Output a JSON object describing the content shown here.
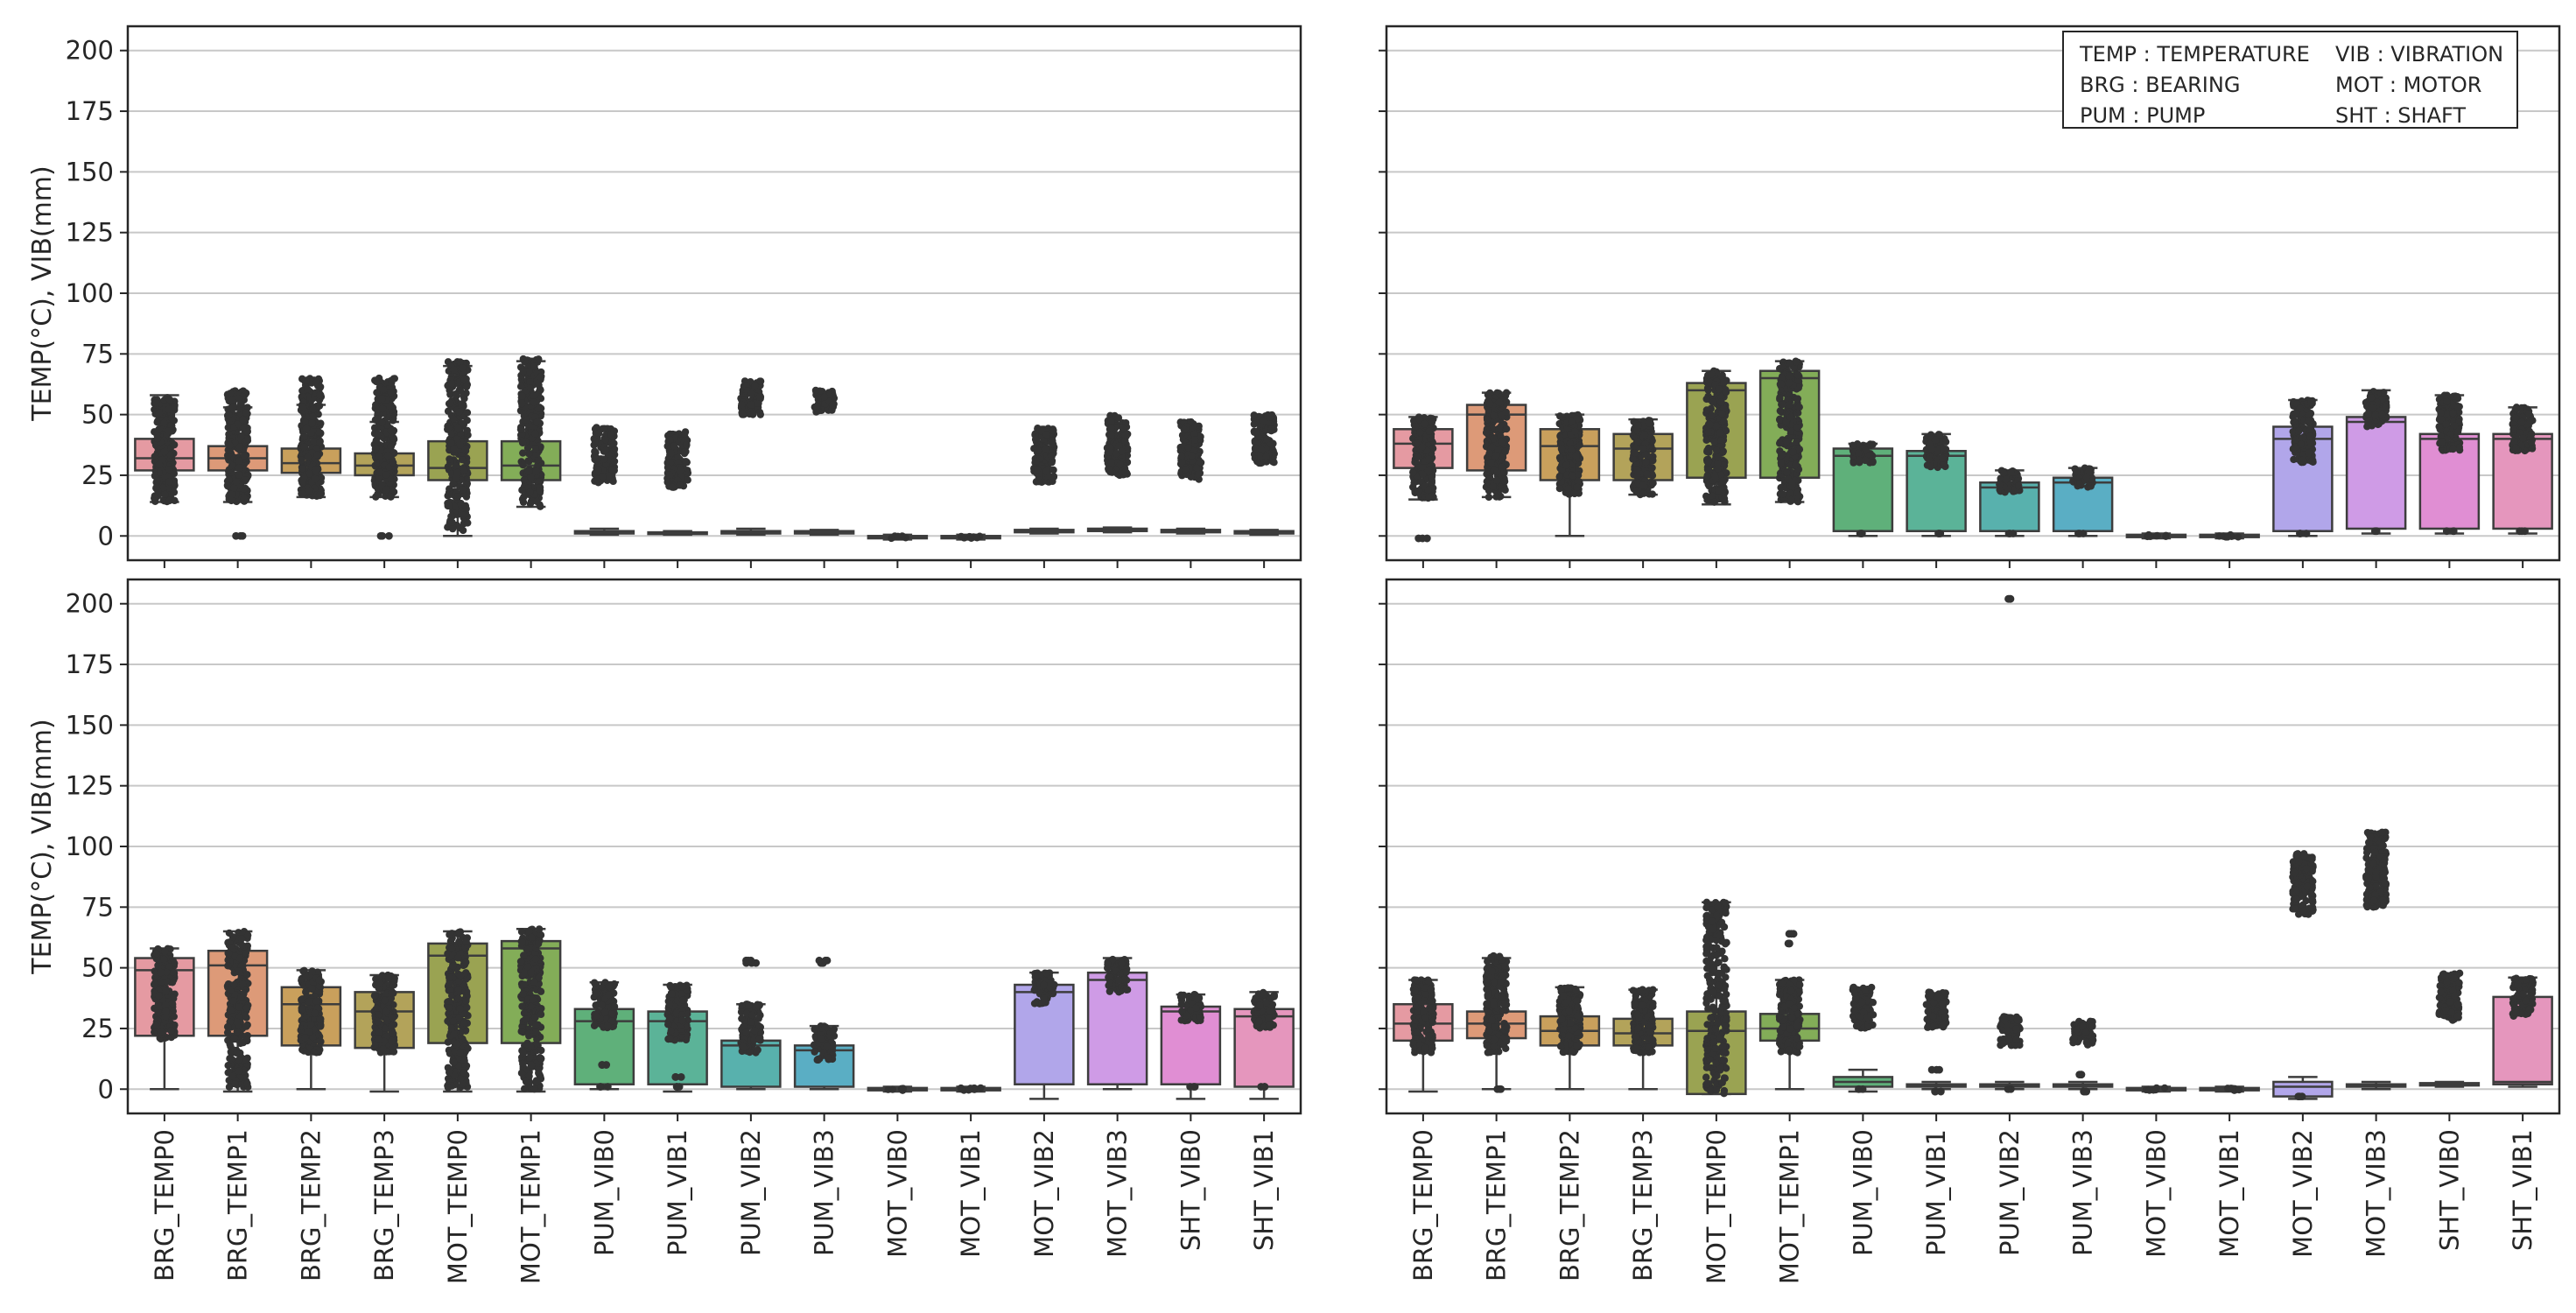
{
  "figure": {
    "type": "box+strip grid",
    "rows": 2,
    "cols": 2
  },
  "colors": {
    "BRG_TEMP0": "#e59aa2",
    "BRG_TEMP1": "#dd9a78",
    "BRG_TEMP2": "#c9a05c",
    "BRG_TEMP3": "#b3a35a",
    "MOT_TEMP0": "#9aa352",
    "MOT_TEMP1": "#83ad58",
    "PUM_VIB0": "#5fb07a",
    "PUM_VIB1": "#5bb398",
    "PUM_VIB2": "#58b1ad",
    "PUM_VIB3": "#5aaec4",
    "MOT_VIB0": "#7aaedc",
    "MOT_VIB1": "#9aaae8",
    "MOT_VIB2": "#b1a6ea",
    "MOT_VIB3": "#cf9be6",
    "SHT_VIB0": "#e08ed3",
    "SHT_VIB1": "#e596bd",
    "outline": "#3d3d3d",
    "point": "#333333",
    "grid": "#c8c8c8"
  },
  "legend": {
    "entries": [
      "TEMP : TEMPERATURE",
      "VIB : VIBRATION",
      "BRG : BEARING",
      "MOT : MOTOR",
      "PUM : PUMP",
      "SHT : SHAFT"
    ]
  },
  "chart_data": [
    {
      "type": "box",
      "panel": "top-left",
      "ylabel": "TEMP(°C), VIB(mm)",
      "ylim": [
        -10,
        210
      ],
      "yticks": [
        "0",
        "25",
        "50",
        "75",
        "100",
        "125",
        "150",
        "175",
        "200"
      ],
      "categories": [
        "BRG_TEMP0",
        "BRG_TEMP1",
        "BRG_TEMP2",
        "BRG_TEMP3",
        "MOT_TEMP0",
        "MOT_TEMP1",
        "PUM_VIB0",
        "PUM_VIB1",
        "PUM_VIB2",
        "PUM_VIB3",
        "MOT_VIB0",
        "MOT_VIB1",
        "MOT_VIB2",
        "MOT_VIB3",
        "SHT_VIB0",
        "SHT_VIB1"
      ],
      "boxes": [
        {
          "q1": 27,
          "med": 32,
          "q3": 40,
          "wlo": 14,
          "whi": 58,
          "strip": [
            14,
            57
          ]
        },
        {
          "q1": 27,
          "med": 32,
          "q3": 37,
          "wlo": 14,
          "whi": 53,
          "strip": [
            14,
            60
          ],
          "extra": [
            0
          ]
        },
        {
          "q1": 26,
          "med": 30,
          "q3": 36,
          "wlo": 16,
          "whi": 54,
          "strip": [
            16,
            65
          ]
        },
        {
          "q1": 25,
          "med": 29,
          "q3": 34,
          "wlo": 16,
          "whi": 47,
          "strip": [
            16,
            65
          ],
          "extra": [
            0
          ]
        },
        {
          "q1": 23,
          "med": 28,
          "q3": 39,
          "wlo": 0,
          "whi": 70,
          "strip": [
            2,
            72
          ]
        },
        {
          "q1": 23,
          "med": 29,
          "q3": 39,
          "wlo": 12,
          "whi": 72,
          "strip": [
            12,
            73
          ]
        },
        {
          "q1": 1,
          "med": 1.5,
          "q3": 2,
          "wlo": 0.5,
          "whi": 3,
          "strip": [
            22,
            45
          ]
        },
        {
          "q1": 1,
          "med": 1,
          "q3": 1.5,
          "wlo": 0.5,
          "whi": 2,
          "strip": [
            20,
            43
          ]
        },
        {
          "q1": 1,
          "med": 1.5,
          "q3": 2,
          "wlo": 0.5,
          "whi": 3,
          "strip": [
            50,
            64
          ]
        },
        {
          "q1": 1,
          "med": 1.5,
          "q3": 2,
          "wlo": 0.5,
          "whi": 2.5,
          "strip": [
            51,
            60
          ]
        },
        {
          "q1": -1,
          "med": -0.5,
          "q3": 0,
          "wlo": -1.5,
          "whi": 0.5,
          "strip": [
            -1,
            0
          ]
        },
        {
          "q1": -1,
          "med": -0.5,
          "q3": 0,
          "wlo": -1.5,
          "whi": 0.5,
          "strip": [
            -1,
            0
          ]
        },
        {
          "q1": 1.5,
          "med": 2,
          "q3": 2.5,
          "wlo": 1,
          "whi": 3,
          "strip": [
            22,
            45
          ]
        },
        {
          "q1": 2,
          "med": 2.5,
          "q3": 3,
          "wlo": 1.5,
          "whi": 3.5,
          "strip": [
            25,
            50
          ]
        },
        {
          "q1": 1.5,
          "med": 2,
          "q3": 2.5,
          "wlo": 1,
          "whi": 3,
          "strip": [
            23,
            47
          ]
        },
        {
          "q1": 1,
          "med": 1.5,
          "q3": 2,
          "wlo": 0.5,
          "whi": 2.5,
          "strip": [
            30,
            50
          ]
        }
      ]
    },
    {
      "type": "box",
      "panel": "top-right",
      "ylabel": "",
      "ylim": [
        -10,
        210
      ],
      "yticks": [
        "0",
        "25",
        "50",
        "75",
        "100",
        "125",
        "150",
        "175",
        "200"
      ],
      "categories": [
        "BRG_TEMP0",
        "BRG_TEMP1",
        "BRG_TEMP2",
        "BRG_TEMP3",
        "MOT_TEMP0",
        "MOT_TEMP1",
        "PUM_VIB0",
        "PUM_VIB1",
        "PUM_VIB2",
        "PUM_VIB3",
        "MOT_VIB0",
        "MOT_VIB1",
        "MOT_VIB2",
        "MOT_VIB3",
        "SHT_VIB0",
        "SHT_VIB1"
      ],
      "boxes": [
        {
          "q1": 28,
          "med": 38,
          "q3": 44,
          "wlo": 15,
          "whi": 49,
          "strip": [
            15,
            49
          ],
          "extra": [
            -1
          ]
        },
        {
          "q1": 27,
          "med": 50,
          "q3": 54,
          "wlo": 16,
          "whi": 59,
          "strip": [
            16,
            59
          ]
        },
        {
          "q1": 23,
          "med": 37,
          "q3": 44,
          "wlo": 0,
          "whi": 50,
          "strip": [
            17,
            50
          ]
        },
        {
          "q1": 23,
          "med": 36,
          "q3": 42,
          "wlo": 17,
          "whi": 48,
          "strip": [
            17,
            48
          ]
        },
        {
          "q1": 24,
          "med": 60,
          "q3": 63,
          "wlo": 13,
          "whi": 68,
          "strip": [
            13,
            68
          ]
        },
        {
          "q1": 24,
          "med": 65,
          "q3": 68,
          "wlo": 14,
          "whi": 72,
          "strip": [
            14,
            72
          ]
        },
        {
          "q1": 2,
          "med": 33,
          "q3": 36,
          "wlo": 0,
          "whi": 38,
          "strip": [
            30,
            38
          ],
          "extra": [
            1
          ]
        },
        {
          "q1": 2,
          "med": 33,
          "q3": 35,
          "wlo": 0,
          "whi": 42,
          "strip": [
            28,
            42
          ],
          "extra": [
            1
          ]
        },
        {
          "q1": 2,
          "med": 20,
          "q3": 22,
          "wlo": 0,
          "whi": 27,
          "strip": [
            18,
            27
          ],
          "extra": [
            1
          ]
        },
        {
          "q1": 2,
          "med": 22,
          "q3": 24,
          "wlo": 0,
          "whi": 28,
          "strip": [
            20,
            28
          ],
          "extra": [
            1
          ]
        },
        {
          "q1": -0.5,
          "med": 0,
          "q3": 0.5,
          "wlo": -1,
          "whi": 1,
          "strip": [
            -0.5,
            0.5
          ]
        },
        {
          "q1": -0.5,
          "med": 0,
          "q3": 0.5,
          "wlo": -1,
          "whi": 1,
          "strip": [
            -0.5,
            0.5
          ]
        },
        {
          "q1": 2,
          "med": 40,
          "q3": 45,
          "wlo": 0,
          "whi": 56,
          "strip": [
            30,
            56
          ],
          "extra": [
            1
          ]
        },
        {
          "q1": 3,
          "med": 47,
          "q3": 49,
          "wlo": 1,
          "whi": 60,
          "strip": [
            45,
            60
          ],
          "extra": [
            2
          ]
        },
        {
          "q1": 3,
          "med": 40,
          "q3": 42,
          "wlo": 1,
          "whi": 58,
          "strip": [
            35,
            58
          ],
          "extra": [
            2
          ]
        },
        {
          "q1": 3,
          "med": 40,
          "q3": 42,
          "wlo": 1,
          "whi": 53,
          "strip": [
            35,
            53
          ],
          "extra": [
            2
          ]
        }
      ]
    },
    {
      "type": "box",
      "panel": "bottom-left",
      "ylabel": "TEMP(°C), VIB(mm)",
      "ylim": [
        -10,
        210
      ],
      "yticks": [
        "0",
        "25",
        "50",
        "75",
        "100",
        "125",
        "150",
        "175",
        "200"
      ],
      "categories": [
        "BRG_TEMP0",
        "BRG_TEMP1",
        "BRG_TEMP2",
        "BRG_TEMP3",
        "MOT_TEMP0",
        "MOT_TEMP1",
        "PUM_VIB0",
        "PUM_VIB1",
        "PUM_VIB2",
        "PUM_VIB3",
        "MOT_VIB0",
        "MOT_VIB1",
        "MOT_VIB2",
        "MOT_VIB3",
        "SHT_VIB0",
        "SHT_VIB1"
      ],
      "boxes": [
        {
          "q1": 22,
          "med": 49,
          "q3": 54,
          "wlo": 0,
          "whi": 58,
          "strip": [
            20,
            58
          ]
        },
        {
          "q1": 22,
          "med": 51,
          "q3": 57,
          "wlo": -1,
          "whi": 65,
          "strip": [
            0,
            65
          ]
        },
        {
          "q1": 18,
          "med": 35,
          "q3": 42,
          "wlo": 0,
          "whi": 49,
          "strip": [
            15,
            49
          ]
        },
        {
          "q1": 17,
          "med": 32,
          "q3": 40,
          "wlo": -1,
          "whi": 47,
          "strip": [
            15,
            47
          ]
        },
        {
          "q1": 19,
          "med": 55,
          "q3": 60,
          "wlo": -1,
          "whi": 65,
          "strip": [
            0,
            65
          ]
        },
        {
          "q1": 19,
          "med": 58,
          "q3": 61,
          "wlo": -1,
          "whi": 66,
          "strip": [
            0,
            66
          ]
        },
        {
          "q1": 2,
          "med": 28,
          "q3": 33,
          "wlo": 0,
          "whi": 44,
          "strip": [
            25,
            44
          ],
          "extra": [
            10,
            1
          ]
        },
        {
          "q1": 2,
          "med": 28,
          "q3": 32,
          "wlo": -1,
          "whi": 43,
          "strip": [
            20,
            43
          ],
          "extra": [
            5,
            1
          ]
        },
        {
          "q1": 1,
          "med": 18,
          "q3": 20,
          "wlo": 0,
          "whi": 35,
          "strip": [
            15,
            35
          ],
          "extra": [
            52,
            53
          ]
        },
        {
          "q1": 1,
          "med": 16,
          "q3": 18,
          "wlo": 0,
          "whi": 26,
          "strip": [
            12,
            26
          ],
          "extra": [
            52,
            53
          ]
        },
        {
          "q1": -0.5,
          "med": 0,
          "q3": 0.5,
          "wlo": -1,
          "whi": 1,
          "strip": [
            -0.5,
            0.5
          ]
        },
        {
          "q1": -0.5,
          "med": 0,
          "q3": 0.5,
          "wlo": -1,
          "whi": 1,
          "strip": [
            -0.5,
            0.5
          ]
        },
        {
          "q1": 2,
          "med": 40,
          "q3": 43,
          "wlo": -4,
          "whi": 48,
          "strip": [
            35,
            48
          ]
        },
        {
          "q1": 2,
          "med": 45,
          "q3": 48,
          "wlo": 0,
          "whi": 54,
          "strip": [
            40,
            54
          ]
        },
        {
          "q1": 2,
          "med": 32,
          "q3": 34,
          "wlo": -4,
          "whi": 39,
          "strip": [
            28,
            39
          ],
          "extra": [
            1
          ]
        },
        {
          "q1": 1,
          "med": 30,
          "q3": 33,
          "wlo": -4,
          "whi": 40,
          "strip": [
            25,
            40
          ],
          "extra": [
            1
          ]
        }
      ]
    },
    {
      "type": "box",
      "panel": "bottom-right",
      "ylabel": "",
      "ylim": [
        -10,
        210
      ],
      "yticks": [
        "0",
        "25",
        "50",
        "75",
        "100",
        "125",
        "150",
        "175",
        "200"
      ],
      "categories": [
        "BRG_TEMP0",
        "BRG_TEMP1",
        "BRG_TEMP2",
        "BRG_TEMP3",
        "MOT_TEMP0",
        "MOT_TEMP1",
        "PUM_VIB0",
        "PUM_VIB1",
        "PUM_VIB2",
        "PUM_VIB3",
        "MOT_VIB0",
        "MOT_VIB1",
        "MOT_VIB2",
        "MOT_VIB3",
        "SHT_VIB0",
        "SHT_VIB1"
      ],
      "boxes": [
        {
          "q1": 20,
          "med": 27,
          "q3": 35,
          "wlo": -1,
          "whi": 45,
          "strip": [
            15,
            45
          ]
        },
        {
          "q1": 21,
          "med": 27,
          "q3": 32,
          "wlo": 0,
          "whi": 54,
          "strip": [
            15,
            55
          ],
          "extra": [
            0
          ]
        },
        {
          "q1": 18,
          "med": 24,
          "q3": 30,
          "wlo": 0,
          "whi": 42,
          "strip": [
            15,
            42
          ]
        },
        {
          "q1": 18,
          "med": 23,
          "q3": 29,
          "wlo": 0,
          "whi": 41,
          "strip": [
            15,
            41
          ]
        },
        {
          "q1": -2,
          "med": 24,
          "q3": 32,
          "wlo": -2,
          "whi": 77,
          "strip": [
            -2,
            77
          ]
        },
        {
          "q1": 20,
          "med": 25,
          "q3": 31,
          "wlo": 0,
          "whi": 45,
          "strip": [
            15,
            45
          ],
          "extra": [
            60,
            64
          ]
        },
        {
          "q1": 1,
          "med": 3,
          "q3": 5,
          "wlo": -1,
          "whi": 8,
          "strip": [
            25,
            42
          ],
          "extra": [
            0
          ]
        },
        {
          "q1": 1,
          "med": 1.5,
          "q3": 2,
          "wlo": 0,
          "whi": 3,
          "strip": [
            25,
            40
          ],
          "extra": [
            8,
            -1
          ]
        },
        {
          "q1": 1,
          "med": 1.5,
          "q3": 2,
          "wlo": 0,
          "whi": 3,
          "strip": [
            18,
            30
          ],
          "extra": [
            202,
            0
          ]
        },
        {
          "q1": 1,
          "med": 1.5,
          "q3": 2,
          "wlo": 0,
          "whi": 3,
          "strip": [
            18,
            28
          ],
          "extra": [
            6,
            -1
          ]
        },
        {
          "q1": -0.5,
          "med": 0,
          "q3": 0.5,
          "wlo": -1,
          "whi": 1,
          "strip": [
            -0.5,
            0.5
          ]
        },
        {
          "q1": -0.5,
          "med": 0,
          "q3": 0.5,
          "wlo": -1,
          "whi": 1,
          "strip": [
            -0.5,
            0.5
          ]
        },
        {
          "q1": -3,
          "med": 1,
          "q3": 3,
          "wlo": -4,
          "whi": 5,
          "strip": [
            72,
            97
          ],
          "extra": [
            -3
          ]
        },
        {
          "q1": 1,
          "med": 1.5,
          "q3": 2,
          "wlo": 0,
          "whi": 3,
          "strip": [
            75,
            106
          ]
        },
        {
          "q1": 1.5,
          "med": 2,
          "q3": 2.5,
          "wlo": 1,
          "whi": 3,
          "strip": [
            28,
            48
          ]
        },
        {
          "q1": 2,
          "med": 3,
          "q3": 38,
          "wlo": 1,
          "whi": 46,
          "strip": [
            30,
            46
          ]
        }
      ]
    }
  ]
}
